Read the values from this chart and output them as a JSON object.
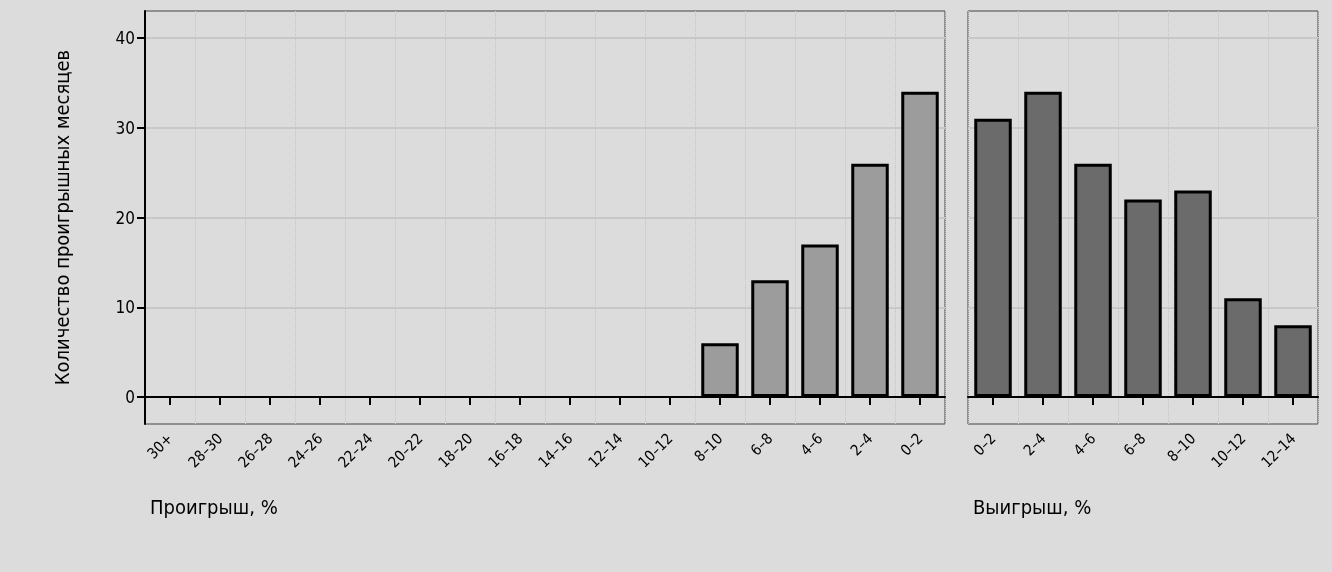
{
  "chart_data": [
    {
      "type": "bar",
      "xlabel": "Проигрыш, %",
      "ylabel": "Количество проигрышных месяцев",
      "categories": [
        "30+",
        "28–30",
        "26–28",
        "24–26",
        "22–24",
        "20–22",
        "18–20",
        "16–18",
        "14–16",
        "12–14",
        "10–12",
        "8–10",
        "6–8",
        "4–6",
        "2–4",
        "0–2"
      ],
      "values": [
        0,
        0,
        0,
        0,
        0,
        0,
        0,
        0,
        0,
        0,
        0,
        6,
        13,
        17,
        26,
        34
      ],
      "color": "#9c9c9c",
      "ylim": [
        -3,
        43
      ],
      "yticks": [
        0,
        10,
        20,
        30,
        40
      ],
      "grid": true
    },
    {
      "type": "bar",
      "xlabel": "Выигрыш, %",
      "categories": [
        "0–2",
        "2–4",
        "4–6",
        "6–8",
        "8–10",
        "10–12",
        "12–14"
      ],
      "values": [
        31,
        34,
        26,
        22,
        23,
        11,
        8
      ],
      "color": "#6b6b6b",
      "ylim": [
        -3,
        43
      ],
      "yticks": [
        0,
        10,
        20,
        30,
        40
      ],
      "grid": true,
      "tick_labels": "x"
    }
  ]
}
